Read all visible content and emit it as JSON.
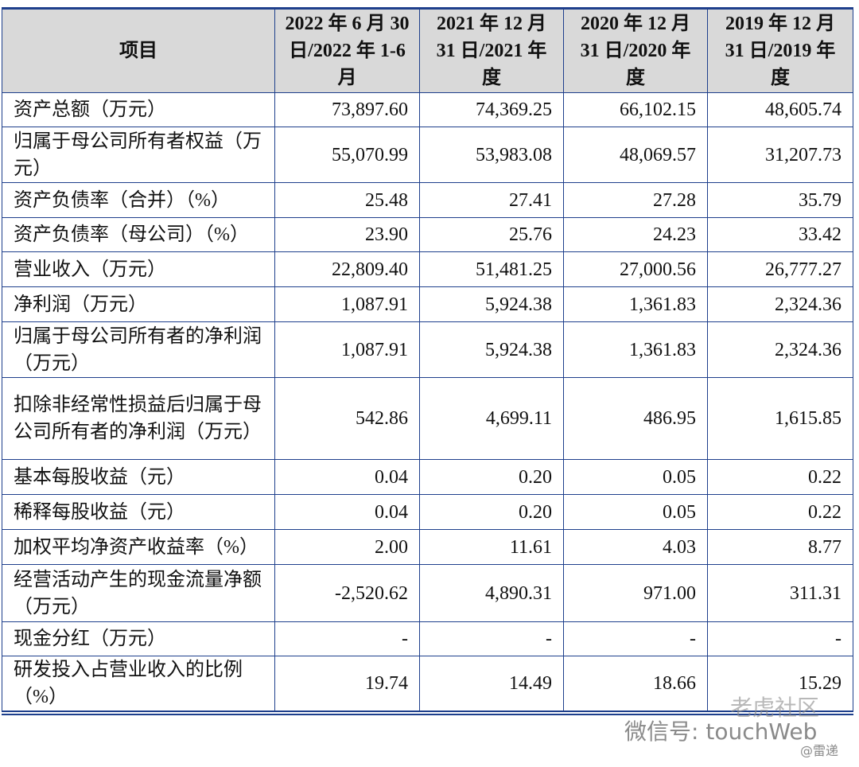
{
  "table": {
    "header": [
      "项目",
      "2022 年 6 月 30 日/2022 年 1-6 月",
      "2021 年 12 月 31 日/2021 年度",
      "2020 年 12 月 31 日/2020 年度",
      "2019 年 12 月 31 日/2019 年度"
    ],
    "rows": [
      [
        "资产总额（万元）",
        "73,897.60",
        "74,369.25",
        "66,102.15",
        "48,605.74"
      ],
      [
        "归属于母公司所有者权益（万元）",
        "55,070.99",
        "53,983.08",
        "48,069.57",
        "31,207.73"
      ],
      [
        "资产负债率（合并）（%）",
        "25.48",
        "27.41",
        "27.28",
        "35.79"
      ],
      [
        "资产负债率（母公司）（%）",
        "23.90",
        "25.76",
        "24.23",
        "33.42"
      ],
      [
        "营业收入（万元）",
        "22,809.40",
        "51,481.25",
        "27,000.56",
        "26,777.27"
      ],
      [
        "净利润（万元）",
        "1,087.91",
        "5,924.38",
        "1,361.83",
        "2,324.36"
      ],
      [
        "归属于母公司所有者的净利润（万元）",
        "1,087.91",
        "5,924.38",
        "1,361.83",
        "2,324.36"
      ],
      [
        "扣除非经常性损益后归属于母公司所有者的净利润（万元）",
        "542.86",
        "4,699.11",
        "486.95",
        "1,615.85"
      ],
      [
        "基本每股收益（元）",
        "0.04",
        "0.20",
        "0.05",
        "0.22"
      ],
      [
        "稀释每股收益（元）",
        "0.04",
        "0.20",
        "0.05",
        "0.22"
      ],
      [
        "加权平均净资产收益率（%）",
        "2.00",
        "11.61",
        "4.03",
        "8.77"
      ],
      [
        "经营活动产生的现金流量净额（万元）",
        "-2,520.62",
        "4,890.31",
        "971.00",
        "311.31"
      ],
      [
        "现金分红（万元）",
        "-",
        "-",
        "-",
        "-"
      ],
      [
        "研发投入占营业收入的比例（%）",
        "19.74",
        "14.49",
        "18.66",
        "15.29"
      ]
    ]
  },
  "watermark": {
    "brand": "老虎社区",
    "account": "微信号: touchWeb",
    "source": "@雷递"
  }
}
